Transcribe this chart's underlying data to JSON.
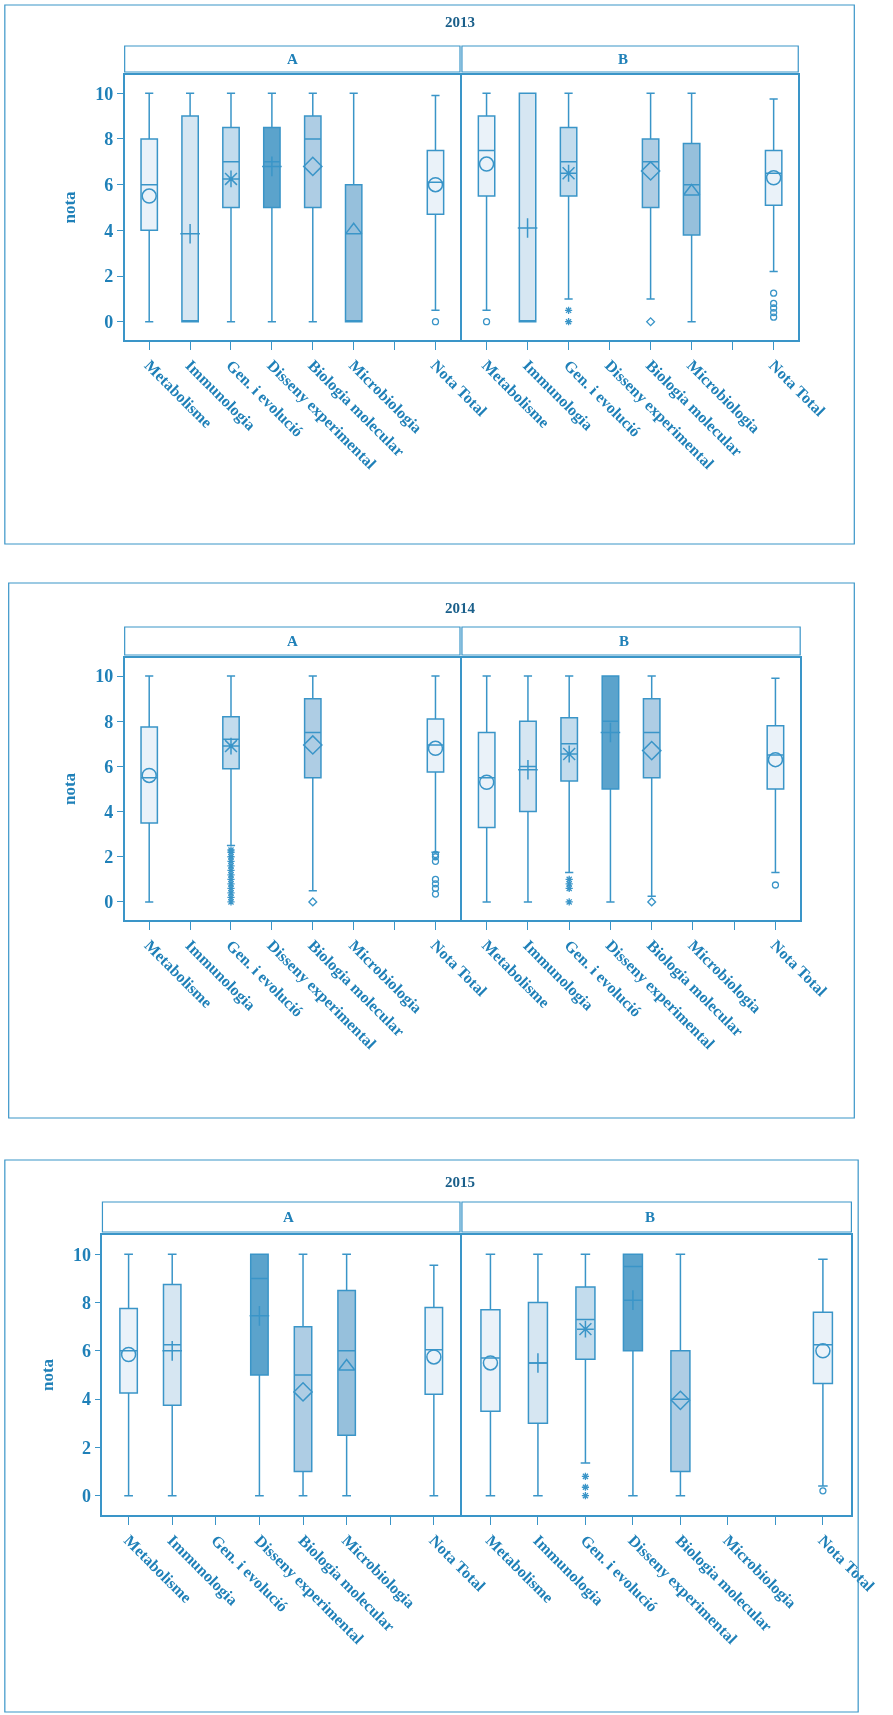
{
  "chart_data": [
    {
      "type": "box",
      "title": "2013",
      "subtitle": "A",
      "ylabel": "nota",
      "categories": [
        "Metabolisme",
        "Immunologia",
        "Gen. i evolució",
        "Disseny experimental",
        "Biologia molecular",
        "Microbiologia",
        null,
        "Nota Total"
      ],
      "ylim": [
        -0.8,
        10.8
      ],
      "yticks": [
        0,
        2,
        4,
        6,
        8,
        10
      ],
      "legend": false,
      "series": [
        {
          "color": "#eaf2f9",
          "marker": "circle",
          "boxes": [
            {
              "low": 0,
              "q1": 4,
              "median": 6,
              "q3": 8,
              "high": 10,
              "mean": 5.5
            },
            null,
            null,
            null,
            null,
            null,
            null,
            null
          ]
        },
        {
          "color": "#d6e6f2",
          "marker": "cross",
          "boxes": [
            null,
            {
              "low": 0,
              "q1": 0,
              "median": 0,
              "q3": 9,
              "high": 10,
              "mean": 3.85
            },
            null,
            null,
            null,
            null,
            null,
            null
          ]
        },
        {
          "color": "#c3dced",
          "marker": "star",
          "boxes": [
            null,
            null,
            {
              "low": 0,
              "q1": 5,
              "median": 7,
              "q3": 8.5,
              "high": 10,
              "mean": 6.25
            },
            null,
            null,
            null,
            null,
            null
          ]
        },
        {
          "color": "#5ba3cc",
          "marker": "cross",
          "boxes": [
            null,
            null,
            null,
            {
              "low": 0,
              "q1": 5,
              "median": 7,
              "q3": 8.5,
              "high": 10,
              "mean": 6.8
            },
            null,
            null,
            null,
            null
          ]
        },
        {
          "color": "#aecde4",
          "marker": "diamond",
          "boxes": [
            null,
            null,
            null,
            null,
            {
              "low": 0,
              "q1": 5,
              "median": 8,
              "q3": 9,
              "high": 10,
              "mean": 6.8
            },
            null,
            null,
            null
          ]
        },
        {
          "color": "#96c0dc",
          "marker": "triangle",
          "boxes": [
            null,
            null,
            null,
            null,
            null,
            {
              "low": 0,
              "q1": 0,
              "median": 0,
              "q3": 6,
              "high": 10,
              "mean": 4
            },
            null,
            null
          ]
        },
        {
          "color": "#eaf2f9",
          "marker": "circle",
          "boxes": [
            null,
            null,
            null,
            null,
            null,
            null,
            null,
            {
              "low": 0.5,
              "q1": 4.7,
              "median": 6.1,
              "q3": 7.5,
              "high": 9.9,
              "mean": 6,
              "outliers": [
                0
              ]
            }
          ]
        }
      ]
    },
    {
      "type": "box",
      "subtitle": "B",
      "categories": [
        "Metabolisme",
        "Immunologia",
        "Gen. i evolució",
        "Disseny experimental",
        "Biologia molecular",
        "Microbiologia",
        null,
        "Nota Total"
      ],
      "ylim": [
        -0.8,
        10.8
      ],
      "yticks": [
        0,
        2,
        4,
        6,
        8,
        10
      ],
      "tick_labels": "x",
      "legend": false,
      "series": [
        {
          "color": "#eaf2f9",
          "marker": "circle",
          "boxes": [
            {
              "low": 0.5,
              "q1": 5.5,
              "median": 7.5,
              "q3": 9,
              "high": 10,
              "mean": 6.9,
              "outliers": [
                0
              ]
            },
            null,
            null,
            null,
            null,
            null,
            null,
            null
          ]
        },
        {
          "color": "#d6e6f2",
          "marker": "cross",
          "boxes": [
            null,
            {
              "low": 0,
              "q1": 0,
              "median": 0,
              "q3": 10,
              "high": 10,
              "mean": 4.1
            },
            null,
            null,
            null,
            null,
            null,
            null
          ]
        },
        {
          "color": "#c3dced",
          "marker": "star",
          "boxes": [
            null,
            null,
            {
              "low": 1,
              "q1": 5.5,
              "median": 7,
              "q3": 8.5,
              "high": 10,
              "mean": 6.5,
              "outliers": [
                0.5,
                0
              ]
            },
            null,
            null,
            null,
            null,
            null
          ]
        },
        {
          "color": "#aecde4",
          "marker": "diamond",
          "boxes": [
            null,
            null,
            null,
            null,
            {
              "low": 1,
              "q1": 5,
              "median": 7,
              "q3": 8,
              "high": 10,
              "mean": 6.6,
              "outliers": [
                0
              ]
            },
            null,
            null,
            null
          ]
        },
        {
          "color": "#96c0dc",
          "marker": "triangle",
          "boxes": [
            null,
            null,
            null,
            null,
            null,
            {
              "low": 0,
              "q1": 3.8,
              "median": 6,
              "q3": 7.8,
              "high": 10,
              "mean": 5.7
            },
            null,
            null
          ]
        },
        {
          "color": "#eaf2f9",
          "marker": "circle",
          "boxes": [
            null,
            null,
            null,
            null,
            null,
            null,
            null,
            {
              "low": 2.2,
              "q1": 5.1,
              "median": 6.5,
              "q3": 7.5,
              "high": 9.75,
              "mean": 6.3,
              "outliers": [
                1.25,
                0.8,
                0.6,
                0.4,
                0.2
              ]
            }
          ]
        }
      ]
    },
    {
      "type": "box",
      "title": "2014",
      "subtitle": "A",
      "ylabel": "nota",
      "categories": [
        "Metabolisme",
        "Immunologia",
        "Gen. i evolució",
        "Disseny experimental",
        "Biologia molecular",
        "Microbiologia",
        null,
        "Nota Total"
      ],
      "ylim": [
        -0.8,
        10.8
      ],
      "yticks": [
        0,
        2,
        4,
        6,
        8,
        10
      ],
      "legend": false,
      "series": [
        {
          "color": "#eaf2f9",
          "marker": "circle",
          "boxes": [
            {
              "low": 0,
              "q1": 3.5,
              "median": 5.5,
              "q3": 7.75,
              "high": 10,
              "mean": 5.6
            },
            null,
            null,
            null,
            null,
            null,
            null,
            null
          ]
        },
        {
          "color": "#c3dced",
          "marker": "star",
          "boxes": [
            null,
            null,
            {
              "low": 2.5,
              "q1": 5.9,
              "median": 7.2,
              "q3": 8.2,
              "high": 10,
              "mean": 6.9,
              "outliers": [
                2.3,
                2.2,
                2.0,
                1.8,
                1.6,
                1.4,
                1.2,
                1.0,
                0.8,
                0.6,
                0.4,
                0.2,
                0
              ]
            },
            null,
            null,
            null,
            null,
            null
          ]
        },
        {
          "color": "#aecde4",
          "marker": "diamond",
          "boxes": [
            null,
            null,
            null,
            null,
            {
              "low": 0.5,
              "q1": 5.5,
              "median": 7.5,
              "q3": 9,
              "high": 10,
              "mean": 6.95,
              "outliers": [
                0
              ]
            },
            null,
            null,
            null
          ]
        },
        {
          "color": "#eaf2f9",
          "marker": "circle",
          "boxes": [
            null,
            null,
            null,
            null,
            null,
            null,
            null,
            {
              "low": 2.2,
              "q1": 5.75,
              "median": 6.95,
              "q3": 8.1,
              "high": 10,
              "mean": 6.8,
              "outliers": [
                2.1,
                2.0,
                1.8,
                1.0,
                0.8,
                0.6,
                0.35
              ]
            }
          ]
        }
      ]
    },
    {
      "type": "box",
      "subtitle": "B",
      "categories": [
        "Metabolisme",
        "Immunologia",
        "Gen. i evolució",
        "Disseny experimental",
        "Biologia molecular",
        "Microbiologia",
        null,
        "Nota Total"
      ],
      "ylim": [
        -0.8,
        10.8
      ],
      "yticks": [
        0,
        2,
        4,
        6,
        8,
        10
      ],
      "tick_labels": "x",
      "legend": false,
      "series": [
        {
          "color": "#eaf2f9",
          "marker": "circle",
          "boxes": [
            {
              "low": 0,
              "q1": 3.3,
              "median": 5.5,
              "q3": 7.5,
              "high": 10,
              "mean": 5.3
            },
            null,
            null,
            null,
            null,
            null,
            null,
            null
          ]
        },
        {
          "color": "#d6e6f2",
          "marker": "cross",
          "boxes": [
            null,
            {
              "low": 0,
              "q1": 4,
              "median": 6,
              "q3": 8,
              "high": 10,
              "mean": 5.85
            },
            null,
            null,
            null,
            null,
            null,
            null
          ]
        },
        {
          "color": "#c3dced",
          "marker": "star",
          "boxes": [
            null,
            null,
            {
              "low": 1.3,
              "q1": 5.35,
              "median": 7,
              "q3": 8.15,
              "high": 10,
              "mean": 6.55,
              "outliers": [
                1.0,
                0.8,
                0.6,
                0
              ]
            },
            null,
            null,
            null,
            null,
            null
          ]
        },
        {
          "color": "#5ba3cc",
          "marker": "cross",
          "boxes": [
            null,
            null,
            null,
            {
              "low": 0,
              "q1": 5,
              "median": 8,
              "q3": 10,
              "high": 10,
              "mean": 7.5
            },
            null,
            null,
            null,
            null
          ]
        },
        {
          "color": "#aecde4",
          "marker": "diamond",
          "boxes": [
            null,
            null,
            null,
            null,
            {
              "low": 0.25,
              "q1": 5.5,
              "median": 7.5,
              "q3": 9,
              "high": 10,
              "mean": 6.7,
              "outliers": [
                0
              ]
            },
            null,
            null,
            null
          ]
        },
        {
          "color": "#eaf2f9",
          "marker": "circle",
          "boxes": [
            null,
            null,
            null,
            null,
            null,
            null,
            null,
            {
              "low": 1.3,
              "q1": 5,
              "median": 6.5,
              "q3": 7.8,
              "high": 9.9,
              "mean": 6.3,
              "outliers": [
                0.75
              ]
            }
          ]
        }
      ]
    },
    {
      "type": "box",
      "title": "2015",
      "subtitle": "A",
      "ylabel": "nota",
      "categories": [
        "Metabolisme",
        "Immunologia",
        "Gen. i evolució",
        "Disseny experimental",
        "Biologia molecular",
        "Microbiologia",
        null,
        "Nota Total"
      ],
      "ylim": [
        -0.8,
        10.8
      ],
      "yticks": [
        0,
        2,
        4,
        6,
        8,
        10
      ],
      "legend": false,
      "series": [
        {
          "color": "#eaf2f9",
          "marker": "circle",
          "boxes": [
            {
              "low": 0,
              "q1": 4.25,
              "median": 6,
              "q3": 7.75,
              "high": 10,
              "mean": 5.85
            },
            null,
            null,
            null,
            null,
            null,
            null,
            null
          ]
        },
        {
          "color": "#d6e6f2",
          "marker": "cross",
          "boxes": [
            null,
            {
              "low": 0,
              "q1": 3.75,
              "median": 6.25,
              "q3": 8.75,
              "high": 10,
              "mean": 6
            },
            null,
            null,
            null,
            null,
            null,
            null
          ]
        },
        {
          "color": "#5ba3cc",
          "marker": "cross",
          "boxes": [
            null,
            null,
            null,
            {
              "low": 0,
              "q1": 5,
              "median": 9,
              "q3": 10,
              "high": 10,
              "mean": 7.45
            },
            null,
            null,
            null,
            null
          ]
        },
        {
          "color": "#aecde4",
          "marker": "diamond",
          "boxes": [
            null,
            null,
            null,
            null,
            {
              "low": 0,
              "q1": 1,
              "median": 5,
              "q3": 7,
              "high": 10,
              "mean": 4.3
            },
            null,
            null,
            null
          ]
        },
        {
          "color": "#96c0dc",
          "marker": "triangle",
          "boxes": [
            null,
            null,
            null,
            null,
            null,
            {
              "low": 0,
              "q1": 2.5,
              "median": 6,
              "q3": 8.5,
              "high": 10,
              "mean": 5.35
            },
            null,
            null
          ]
        },
        {
          "color": "#eaf2f9",
          "marker": "circle",
          "boxes": [
            null,
            null,
            null,
            null,
            null,
            null,
            null,
            {
              "low": 0,
              "q1": 4.2,
              "median": 6.05,
              "q3": 7.8,
              "high": 9.55,
              "mean": 5.75
            }
          ]
        }
      ]
    },
    {
      "type": "box",
      "subtitle": "B",
      "categories": [
        "Metabolisme",
        "Immunologia",
        "Gen. i evolució",
        "Disseny experimental",
        "Biologia molecular",
        "Microbiologia",
        null,
        "Nota Total"
      ],
      "ylim": [
        -0.8,
        10.8
      ],
      "yticks": [
        0,
        2,
        4,
        6,
        8,
        10
      ],
      "tick_labels": "x",
      "legend": false,
      "series": [
        {
          "color": "#eaf2f9",
          "marker": "circle",
          "boxes": [
            {
              "low": 0,
              "q1": 3.5,
              "median": 5.7,
              "q3": 7.7,
              "high": 10,
              "mean": 5.5
            },
            null,
            null,
            null,
            null,
            null,
            null,
            null
          ]
        },
        {
          "color": "#d6e6f2",
          "marker": "cross",
          "boxes": [
            null,
            {
              "low": 0,
              "q1": 3,
              "median": 5.5,
              "q3": 8,
              "high": 10,
              "mean": 5.5
            },
            null,
            null,
            null,
            null,
            null,
            null
          ]
        },
        {
          "color": "#c3dced",
          "marker": "star",
          "boxes": [
            null,
            null,
            {
              "low": 1.35,
              "q1": 5.65,
              "median": 7.3,
              "q3": 8.65,
              "high": 10,
              "mean": 6.9,
              "outliers": [
                0.8,
                0.35,
                0
              ]
            },
            null,
            null,
            null,
            null,
            null
          ]
        },
        {
          "color": "#5ba3cc",
          "marker": "cross",
          "boxes": [
            null,
            null,
            null,
            {
              "low": 0,
              "q1": 6,
              "median": 9.5,
              "q3": 10,
              "high": 10,
              "mean": 8.1
            },
            null,
            null,
            null,
            null
          ]
        },
        {
          "color": "#aecde4",
          "marker": "diamond",
          "boxes": [
            null,
            null,
            null,
            null,
            {
              "low": 0,
              "q1": 1,
              "median": 4,
              "q3": 6,
              "high": 10,
              "mean": 3.95
            },
            null,
            null,
            null
          ]
        },
        {
          "color": "#eaf2f9",
          "marker": "circle",
          "boxes": [
            null,
            null,
            null,
            null,
            null,
            null,
            null,
            {
              "low": 0.4,
              "q1": 4.65,
              "median": 6.25,
              "q3": 7.6,
              "high": 9.8,
              "mean": 6,
              "outliers": [
                0.2
              ]
            }
          ]
        }
      ]
    }
  ]
}
